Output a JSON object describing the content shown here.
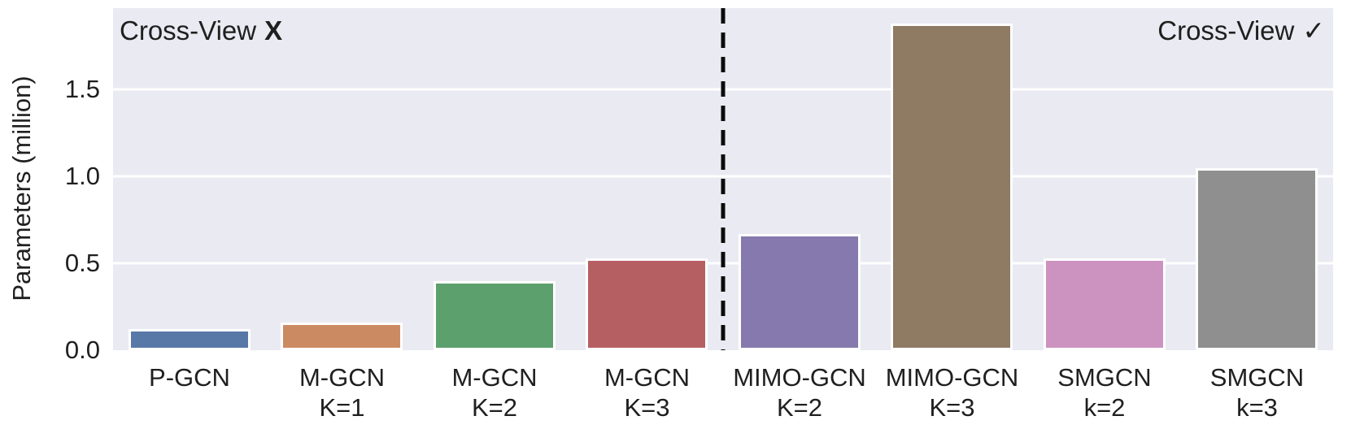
{
  "figure": {
    "background_color": "#ffffff",
    "plot_background_color": "#EAEAF2",
    "gridline_color": "#ffffff",
    "text_color": "#1f1f1f",
    "separator_color": "#0b0b0b"
  },
  "chart_data": {
    "type": "bar",
    "title": "",
    "xlabel": "",
    "ylabel": "Parameters (million)",
    "ylim": [
      0,
      1.97
    ],
    "grid": true,
    "yticks": [
      {
        "value": 0.0,
        "label": "0.0"
      },
      {
        "value": 0.5,
        "label": "0.5"
      },
      {
        "value": 1.0,
        "label": "1.0"
      },
      {
        "value": 1.5,
        "label": "1.5"
      }
    ],
    "categories": [
      "P-GCN",
      "M-GCN\nK=1",
      "M-GCN\nK=2",
      "M-GCN\nK=3",
      "MIMO-GCN\nK=2",
      "MIMO-GCN\nK=3",
      "SMGCN\nk=2",
      "SMGCN\nk=3"
    ],
    "values": [
      0.12,
      0.16,
      0.4,
      0.53,
      0.67,
      1.88,
      0.53,
      1.05
    ],
    "bar_colors": [
      "#5878A8",
      "#CC8A62",
      "#5BA06D",
      "#B55F62",
      "#8579AD",
      "#8F7A64",
      "#CC93C0",
      "#8F8F8F"
    ],
    "separator_after_index": 3,
    "annotations": {
      "left": {
        "text": "Cross-View",
        "symbol": "X",
        "position": "top-left"
      },
      "right": {
        "text": "Cross-View",
        "symbol": "✓",
        "position": "top-right"
      }
    }
  }
}
